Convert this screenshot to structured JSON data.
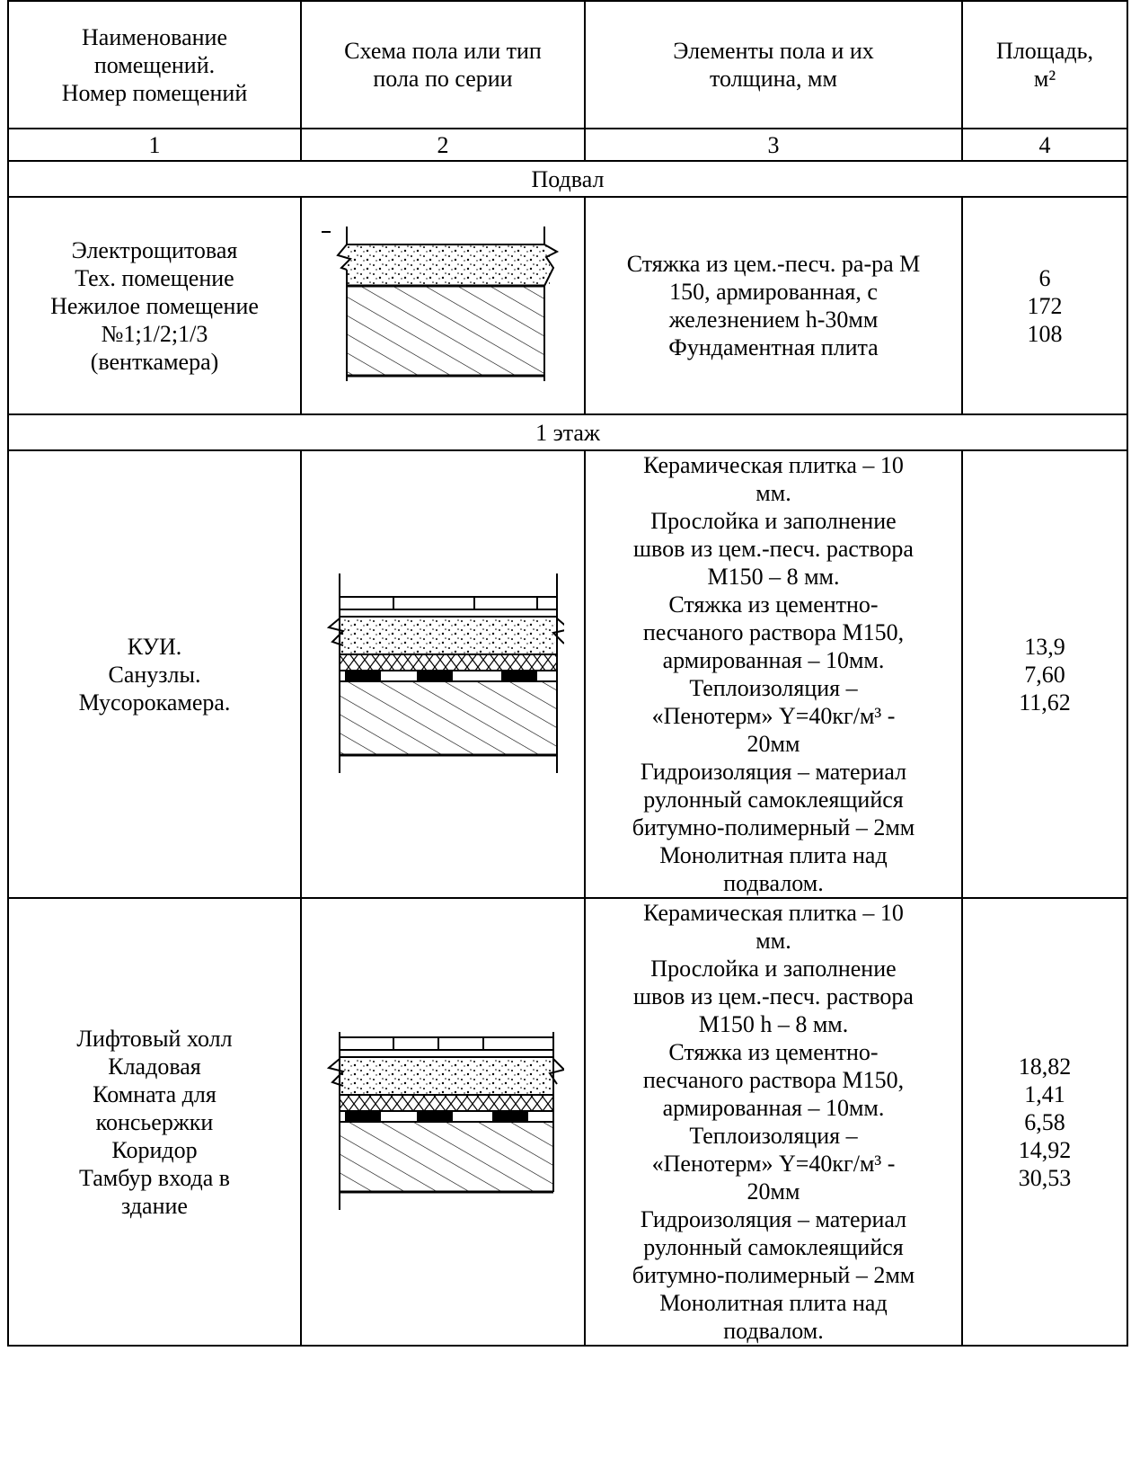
{
  "table": {
    "headers": [
      [
        "Наименование",
        "помещений.",
        "Номер помещений"
      ],
      [
        "Схема пола или тип",
        "пола по серии"
      ],
      [
        "Элементы пола и их",
        "толщина, мм"
      ],
      [
        "Площадь,",
        "м²"
      ]
    ],
    "column_numbers": [
      "1",
      "2",
      "3",
      "4"
    ],
    "sections": [
      {
        "title": "Подвал",
        "rows": [
          {
            "rooms": [
              "Электрощитовая",
              "Тех. помещение",
              "Нежилое помещение",
              "№1;1/2;1/3",
              "(венткамера)"
            ],
            "scheme": "basement-floor-section-icon",
            "elements": [
              "Стяжка из цем.-песч. ра-ра М",
              "150, армированная, с",
              "железнением h-30мм",
              "Фундаментная плита"
            ],
            "areas": [
              "6",
              "172",
              "108"
            ]
          }
        ]
      },
      {
        "title": "1 этаж",
        "rows": [
          {
            "rooms": [
              "КУИ.",
              "Санузлы.",
              "Мусорокамера."
            ],
            "scheme": "tiled-floor-section-icon",
            "elements": [
              "Керамическая плитка – 10",
              "мм.",
              "Прослойка и заполнение",
              "швов из цем.-песч. раствора",
              "М150 – 8 мм.",
              "Стяжка из цементно-",
              "песчаного раствора М150,",
              "армированная – 10мм.",
              "Теплоизоляция –",
              "«Пенотерм» Y=40кг/м³ -",
              "20мм",
              "Гидроизоляция – материал",
              "рулонный самоклеящийся",
              "битумно-полимерный – 2мм",
              "Монолитная плита над",
              "подвалом."
            ],
            "areas": [
              "13,9",
              "7,60",
              "11,62"
            ]
          },
          {
            "rooms": [
              "Лифтовый холл",
              "Кладовая",
              "Комната для",
              "консьержки",
              "Коридор",
              "Тамбур входа в",
              "здание"
            ],
            "scheme": "tiled-floor-section-icon",
            "elements": [
              "Керамическая плитка – 10",
              "мм.",
              "Прослойка и заполнение",
              "швов из цем.-песч. раствора",
              "М150 h – 8 мм.",
              "Стяжка из цементно-",
              "песчаного раствора М150,",
              "армированная – 10мм.",
              "Теплоизоляция –",
              "«Пенотерм» Y=40кг/м³ -",
              "20мм",
              "Гидроизоляция – материал",
              "рулонный самоклеящийся",
              "битумно-полимерный – 2мм",
              "Монолитная плита над",
              "подвалом."
            ],
            "areas": [
              "18,82",
              "1,41",
              "6,58",
              "14,92",
              "30,53"
            ]
          }
        ]
      }
    ]
  }
}
